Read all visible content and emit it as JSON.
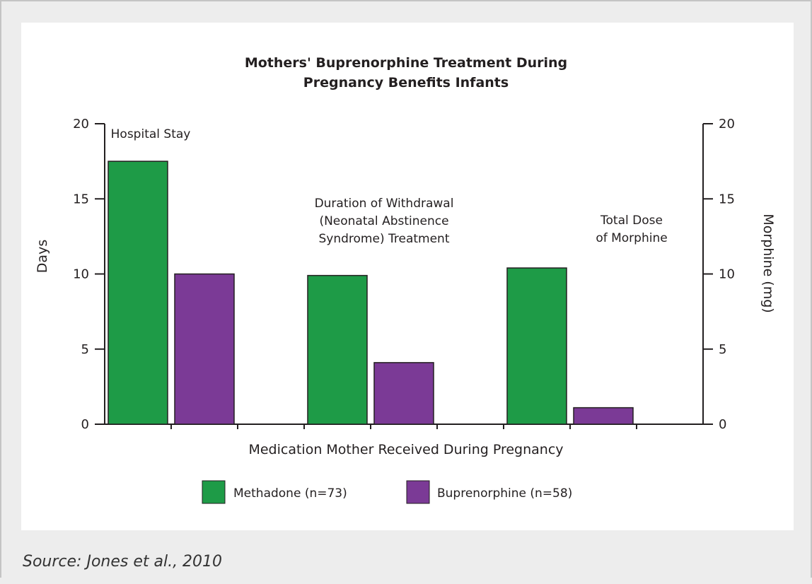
{
  "source": "Source: Jones et al., 2010",
  "chart_data": {
    "type": "bar",
    "title": [
      "Mothers' Buprenorphine Treatment During",
      "Pregnancy Benefits Infants"
    ],
    "xlabel": "Medication Mother Received During Pregnancy",
    "ylabel_left": "Days",
    "ylabel_right": "Morphine (mg)",
    "ylim": [
      0,
      20
    ],
    "yticks": [
      0,
      5,
      10,
      15,
      20
    ],
    "groups": [
      {
        "label": [
          "Hospital Stay"
        ],
        "axis": "left",
        "values": [
          17.5,
          10.0
        ]
      },
      {
        "label": [
          "Duration of Withdrawal",
          "(Neonatal Abstinence",
          "Syndrome) Treatment"
        ],
        "axis": "left",
        "values": [
          9.9,
          4.1
        ]
      },
      {
        "label": [
          "Total Dose",
          "of Morphine"
        ],
        "axis": "right",
        "values": [
          10.4,
          1.1
        ]
      }
    ],
    "series": [
      {
        "name": "Methadone (n=73)",
        "color": "#1e9b47"
      },
      {
        "name": "Buprenorphine (n=58)",
        "color": "#7b3a96"
      }
    ],
    "legend_position": "bottom-center",
    "grid": false
  }
}
